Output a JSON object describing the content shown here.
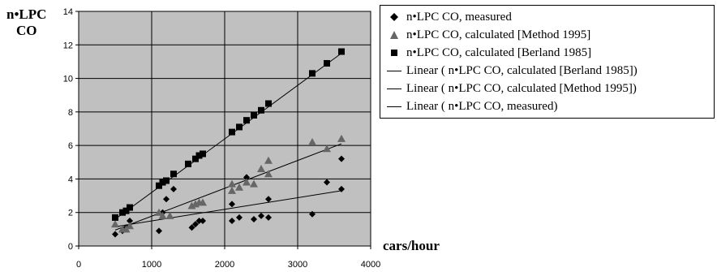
{
  "chart_data": {
    "type": "scatter",
    "ylabel_lines": [
      "n•LPC",
      "CO"
    ],
    "xlabel": "cars/hour",
    "xlim": [
      0,
      4000
    ],
    "ylim": [
      0,
      14
    ],
    "xticks": [
      0,
      1000,
      2000,
      3000,
      4000
    ],
    "yticks": [
      0,
      2,
      4,
      6,
      8,
      10,
      12,
      14
    ],
    "grid": true,
    "legend_position": "right",
    "plot_background": "#c0c0c0",
    "series": [
      {
        "name": "n•LPC CO, measured",
        "marker": "diamond",
        "color": "#000000",
        "points": [
          [
            500,
            0.7
          ],
          [
            600,
            0.9
          ],
          [
            650,
            1.1
          ],
          [
            700,
            1.5
          ],
          [
            1100,
            0.9
          ],
          [
            1150,
            2.0
          ],
          [
            1200,
            2.8
          ],
          [
            1300,
            3.4
          ],
          [
            1550,
            1.1
          ],
          [
            1600,
            1.3
          ],
          [
            1650,
            1.5
          ],
          [
            1700,
            1.5
          ],
          [
            2100,
            1.5
          ],
          [
            2100,
            2.5
          ],
          [
            2200,
            1.7
          ],
          [
            2300,
            4.1
          ],
          [
            2400,
            1.6
          ],
          [
            2500,
            1.8
          ],
          [
            2600,
            1.7
          ],
          [
            2600,
            2.8
          ],
          [
            3200,
            1.9
          ],
          [
            3400,
            3.8
          ],
          [
            3600,
            5.2
          ],
          [
            3600,
            3.4
          ]
        ]
      },
      {
        "name": "n•LPC CO, calculated [Method 1995]",
        "marker": "triangle",
        "color": "#666666",
        "points": [
          [
            500,
            1.3
          ],
          [
            600,
            1.0
          ],
          [
            650,
            1.0
          ],
          [
            700,
            1.2
          ],
          [
            1100,
            2.0
          ],
          [
            1150,
            1.8
          ],
          [
            1250,
            1.8
          ],
          [
            1550,
            2.4
          ],
          [
            1600,
            2.5
          ],
          [
            1650,
            2.6
          ],
          [
            1700,
            2.6
          ],
          [
            2100,
            3.3
          ],
          [
            2100,
            3.7
          ],
          [
            2200,
            3.5
          ],
          [
            2300,
            3.8
          ],
          [
            2400,
            3.7
          ],
          [
            2500,
            4.6
          ],
          [
            2600,
            5.1
          ],
          [
            2600,
            4.3
          ],
          [
            3200,
            6.2
          ],
          [
            3400,
            5.8
          ],
          [
            3600,
            6.4
          ]
        ]
      },
      {
        "name": "n•LPC CO, calculated [Berland 1985]",
        "marker": "square",
        "color": "#000000",
        "points": [
          [
            500,
            1.7
          ],
          [
            600,
            2.0
          ],
          [
            650,
            2.1
          ],
          [
            700,
            2.3
          ],
          [
            1100,
            3.6
          ],
          [
            1150,
            3.8
          ],
          [
            1200,
            3.9
          ],
          [
            1300,
            4.3
          ],
          [
            1500,
            4.9
          ],
          [
            1600,
            5.2
          ],
          [
            1650,
            5.4
          ],
          [
            1700,
            5.5
          ],
          [
            2100,
            6.8
          ],
          [
            2200,
            7.1
          ],
          [
            2300,
            7.5
          ],
          [
            2400,
            7.8
          ],
          [
            2500,
            8.1
          ],
          [
            2600,
            8.5
          ],
          [
            3200,
            10.3
          ],
          [
            3400,
            10.9
          ],
          [
            3600,
            11.6
          ]
        ]
      }
    ],
    "trendlines": [
      {
        "name": "Linear ( n•LPC CO, calculated [Berland 1985])",
        "x": [
          500,
          3600
        ],
        "y": [
          1.6,
          11.5
        ],
        "color": "#000000"
      },
      {
        "name": "Linear ( n•LPC CO, calculated [Method 1995])",
        "x": [
          500,
          3600
        ],
        "y": [
          0.95,
          6.1
        ],
        "color": "#000000"
      },
      {
        "name": "Linear ( n•LPC CO, measured)",
        "x": [
          500,
          3600
        ],
        "y": [
          1.15,
          3.3
        ],
        "color": "#000000"
      }
    ]
  }
}
